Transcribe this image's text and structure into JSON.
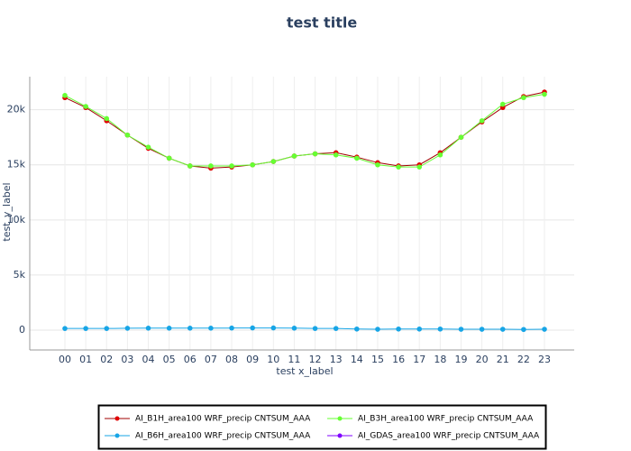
{
  "chart_data": {
    "type": "line",
    "title": "test title",
    "x_label": "test x_label",
    "y_label": "test_y_label",
    "categories": [
      "00",
      "01",
      "02",
      "03",
      "04",
      "05",
      "06",
      "07",
      "08",
      "09",
      "10",
      "11",
      "12",
      "13",
      "14",
      "15",
      "16",
      "17",
      "18",
      "19",
      "20",
      "21",
      "22",
      "23"
    ],
    "ylim": [
      -1800,
      23000
    ],
    "yticks": [
      0,
      {
        "value": 5000,
        "label": "5k"
      },
      {
        "value": 10000,
        "label": "10k"
      },
      {
        "value": 15000,
        "label": "15k"
      },
      {
        "value": 20000,
        "label": "20k"
      }
    ],
    "grid": true,
    "series": [
      {
        "name": "AI_B1H_area100 WRF_precip CNTSUM_AAA",
        "color": "#e00000",
        "line_color": "#a00000",
        "values": [
          21100,
          20200,
          19000,
          17700,
          16500,
          15600,
          14900,
          14700,
          14800,
          15000,
          15300,
          15800,
          16000,
          16100,
          15700,
          15200,
          14900,
          15000,
          16100,
          17500,
          18900,
          20200,
          21200,
          21600
        ]
      },
      {
        "name": "AI_B3H_area100 WRF_precip CNTSUM_AAA",
        "color": "#66ff33",
        "line_color": "#66ff33",
        "values": [
          21300,
          20300,
          19200,
          17700,
          16600,
          15600,
          14900,
          14900,
          14900,
          15000,
          15300,
          15800,
          16000,
          15900,
          15600,
          15000,
          14800,
          14800,
          15900,
          17500,
          19000,
          20500,
          21100,
          21400
        ]
      },
      {
        "name": "AI_B6H_area100 WRF_precip CNTSUM_AAA",
        "color": "#17a5e6",
        "line_color": "#17a5e6",
        "values": [
          150,
          150,
          150,
          170,
          180,
          180,
          180,
          180,
          190,
          200,
          200,
          180,
          150,
          150,
          100,
          80,
          100,
          100,
          100,
          80,
          80,
          80,
          60,
          80
        ]
      },
      {
        "name": "AI_GDAS_area100 WRF_precip CNTSUM_AAA",
        "color": "#8000ff",
        "line_color": "#8000ff",
        "values": [
          null,
          null,
          null,
          null,
          null,
          null,
          null,
          null,
          null,
          null,
          null,
          null,
          null,
          null,
          null,
          null,
          null,
          null,
          null,
          null,
          null,
          null,
          null,
          null
        ]
      }
    ]
  }
}
